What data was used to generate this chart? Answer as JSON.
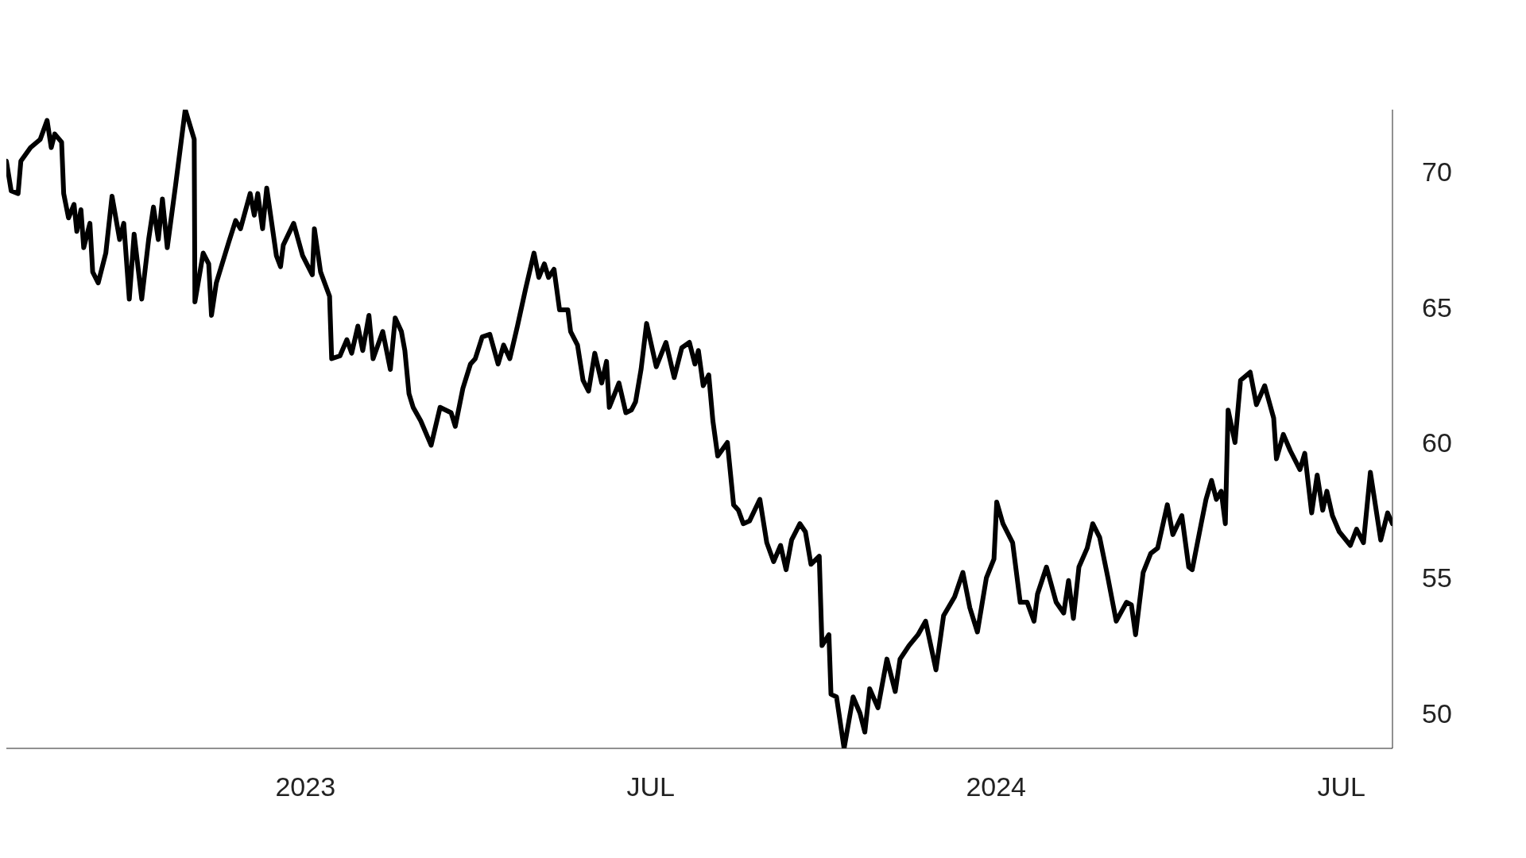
{
  "chart_data": {
    "type": "line",
    "x": [
      2022.567,
      2022.574,
      2022.584,
      2022.588,
      2022.602,
      2022.616,
      2022.626,
      2022.632,
      2022.637,
      2022.647,
      2022.65,
      2022.657,
      2022.665,
      2022.669,
      2022.675,
      2022.679,
      2022.688,
      2022.692,
      2022.7,
      2022.711,
      2022.72,
      2022.731,
      2022.737,
      2022.745,
      2022.752,
      2022.763,
      2022.773,
      2022.78,
      2022.787,
      2022.793,
      2022.8,
      2022.812,
      2022.826,
      2022.839,
      2022.84,
      2022.852,
      2022.86,
      2022.864,
      2022.871,
      2022.889,
      2022.899,
      2022.906,
      2022.92,
      2022.926,
      2022.931,
      2022.938,
      2022.944,
      2022.958,
      2022.964,
      2022.968,
      2022.983,
      2022.996,
      2023.01,
      2023.013,
      2023.022,
      2023.035,
      2023.038,
      2023.05,
      2023.06,
      2023.067,
      2023.076,
      2023.083,
      2023.092,
      2023.098,
      2023.112,
      2023.123,
      2023.13,
      2023.139,
      2023.144,
      2023.15,
      2023.156,
      2023.167,
      2023.182,
      2023.195,
      2023.211,
      2023.217,
      2023.228,
      2023.239,
      2023.246,
      2023.256,
      2023.267,
      2023.279,
      2023.287,
      2023.296,
      2023.307,
      2023.319,
      2023.331,
      2023.338,
      2023.346,
      2023.352,
      2023.36,
      2023.368,
      2023.38,
      2023.384,
      2023.394,
      2023.402,
      2023.41,
      2023.419,
      2023.429,
      2023.436,
      2023.44,
      2023.454,
      2023.464,
      2023.472,
      2023.478,
      2023.486,
      2023.494,
      2023.508,
      2023.522,
      2023.534,
      2023.545,
      2023.556,
      2023.564,
      2023.569,
      2023.576,
      2023.584,
      2023.59,
      2023.597,
      2023.611,
      2023.62,
      2023.627,
      2023.634,
      2023.643,
      2023.658,
      2023.668,
      2023.678,
      2023.688,
      2023.696,
      2023.704,
      2023.716,
      2023.724,
      2023.732,
      2023.744,
      2023.748,
      2023.758,
      2023.761,
      2023.769,
      2023.78,
      2023.793,
      2023.803,
      2023.81,
      2023.817,
      2023.829,
      2023.842,
      2023.854,
      2023.861,
      2023.874,
      2023.887,
      2023.898,
      2023.913,
      2023.924,
      2023.94,
      2023.952,
      2023.962,
      2023.973,
      2023.986,
      2023.997,
      2024.001,
      2024.01,
      2024.024,
      2024.035,
      2024.045,
      2024.055,
      2024.06,
      2024.073,
      2024.087,
      2024.098,
      2024.105,
      2024.112,
      2024.12,
      2024.132,
      2024.14,
      2024.15,
      2024.162,
      2024.174,
      2024.189,
      2024.196,
      2024.202,
      2024.213,
      2024.224,
      2024.234,
      2024.248,
      2024.256,
      2024.269,
      2024.279,
      2024.284,
      2024.297,
      2024.304,
      2024.312,
      2024.319,
      2024.326,
      2024.332,
      2024.336,
      2024.346,
      2024.354,
      2024.368,
      2024.377,
      2024.389,
      2024.402,
      2024.406,
      2024.416,
      2024.426,
      2024.44,
      2024.447,
      2024.457,
      2024.465,
      2024.473,
      2024.479,
      2024.487,
      2024.497,
      2024.513,
      2024.522,
      2024.532,
      2024.542,
      2024.557,
      2024.567,
      2024.574
    ],
    "values": [
      70.4,
      69.3,
      69.2,
      70.4,
      70.9,
      71.2,
      71.9,
      70.9,
      71.4,
      71.1,
      69.2,
      68.3,
      68.8,
      67.8,
      68.6,
      67.2,
      68.1,
      66.3,
      65.9,
      67.0,
      69.1,
      67.5,
      68.1,
      65.3,
      67.7,
      65.3,
      67.5,
      68.7,
      67.5,
      69.0,
      67.2,
      69.5,
      72.3,
      71.2,
      65.2,
      67.0,
      66.6,
      64.7,
      65.9,
      67.4,
      68.2,
      67.9,
      69.2,
      68.4,
      69.2,
      67.9,
      69.4,
      66.9,
      66.5,
      67.3,
      68.1,
      66.9,
      66.2,
      67.9,
      66.3,
      65.4,
      63.1,
      63.2,
      63.8,
      63.3,
      64.3,
      63.4,
      64.7,
      63.1,
      64.1,
      62.7,
      64.6,
      64.1,
      63.4,
      61.8,
      61.3,
      60.8,
      59.9,
      61.3,
      61.1,
      60.6,
      62.0,
      62.9,
      63.1,
      63.9,
      64.0,
      62.9,
      63.6,
      63.1,
      64.3,
      65.7,
      67.0,
      66.1,
      66.6,
      66.1,
      66.4,
      64.9,
      64.9,
      64.1,
      63.6,
      62.3,
      61.9,
      63.3,
      62.2,
      63.0,
      61.3,
      62.2,
      61.1,
      61.2,
      61.5,
      62.7,
      64.4,
      62.8,
      63.7,
      62.4,
      63.5,
      63.7,
      62.9,
      63.4,
      62.1,
      62.5,
      60.8,
      59.5,
      60.0,
      57.7,
      57.5,
      57.0,
      57.1,
      57.9,
      56.3,
      55.6,
      56.2,
      55.3,
      56.4,
      57.0,
      56.7,
      55.5,
      55.8,
      52.5,
      52.9,
      50.7,
      50.6,
      48.7,
      50.6,
      50.0,
      49.3,
      50.9,
      50.2,
      52.0,
      50.8,
      52.0,
      52.5,
      52.9,
      53.4,
      51.6,
      53.6,
      54.3,
      55.2,
      53.9,
      53.0,
      55.0,
      55.7,
      57.8,
      57.0,
      56.3,
      54.1,
      54.1,
      53.4,
      54.4,
      55.4,
      54.1,
      53.7,
      54.9,
      53.5,
      55.4,
      56.1,
      57.0,
      56.5,
      55.0,
      53.4,
      54.1,
      54.0,
      52.9,
      55.2,
      55.9,
      56.1,
      57.7,
      56.6,
      57.3,
      55.4,
      55.3,
      57.0,
      57.9,
      58.6,
      57.9,
      58.2,
      57.0,
      61.2,
      60.0,
      62.3,
      62.6,
      61.4,
      62.1,
      60.9,
      59.4,
      60.3,
      59.7,
      59.0,
      59.6,
      57.4,
      58.8,
      57.5,
      58.2,
      57.3,
      56.7,
      56.2,
      56.8,
      56.3,
      58.9,
      56.4,
      57.4,
      57.0
    ],
    "color": "#000000",
    "xticks": [
      {
        "value": 2023,
        "label": "2023"
      },
      {
        "value": 2023.5,
        "label": "JUL"
      },
      {
        "value": 2024,
        "label": "2024"
      },
      {
        "value": 2024.5,
        "label": "JUL"
      }
    ],
    "xlim": [
      2022.567,
      2024.574
    ],
    "ylim": [
      48.7,
      72.3
    ],
    "yticks": [
      50,
      55,
      60,
      65,
      70
    ]
  }
}
